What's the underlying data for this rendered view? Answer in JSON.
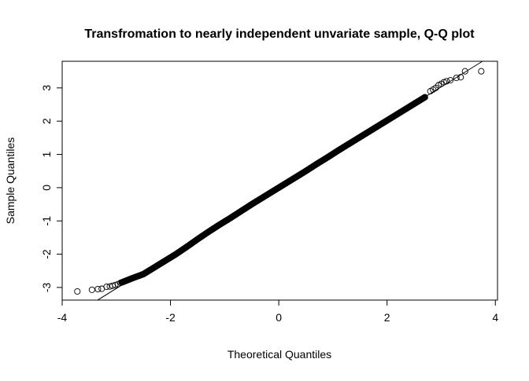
{
  "chart_data": {
    "type": "scatter",
    "title": "Transfromation to nearly independent unvariate sample, Q-Q plot",
    "xlabel": "Theoretical Quantiles",
    "ylabel": "Sample Quantiles",
    "xlim": [
      -4.0,
      4.04
    ],
    "ylim": [
      -3.38,
      3.8
    ],
    "xticks": [
      -4,
      -2,
      0,
      2,
      4
    ],
    "yticks": [
      -3,
      -2,
      -1,
      0,
      1,
      2,
      3
    ],
    "grid": false,
    "marker": "open-circle",
    "reference_line": {
      "slope": 1.01,
      "intercept": 0.0
    },
    "lower_tail_points": [
      [
        -3.72,
        -3.12
      ],
      [
        -3.45,
        -3.07
      ],
      [
        -3.34,
        -3.05
      ],
      [
        -3.27,
        -3.04
      ],
      [
        -3.18,
        -2.98
      ],
      [
        -3.12,
        -2.97
      ],
      [
        -3.07,
        -2.95
      ],
      [
        -3.02,
        -2.93
      ],
      [
        -2.97,
        -2.9
      ],
      [
        -2.92,
        -2.86
      ]
    ],
    "body_quantiles": [
      [
        -2.9,
        -2.85
      ],
      [
        -2.7,
        -2.72
      ],
      [
        -2.5,
        -2.6
      ],
      [
        -2.3,
        -2.4
      ],
      [
        -2.1,
        -2.2
      ],
      [
        -1.9,
        -2.0
      ],
      [
        -1.7,
        -1.78
      ],
      [
        -1.5,
        -1.55
      ],
      [
        -1.3,
        -1.33
      ],
      [
        -1.1,
        -1.12
      ],
      [
        -0.9,
        -0.92
      ],
      [
        -0.7,
        -0.71
      ],
      [
        -0.5,
        -0.5
      ],
      [
        -0.3,
        -0.3
      ],
      [
        -0.1,
        -0.1
      ],
      [
        0.1,
        0.1
      ],
      [
        0.3,
        0.3
      ],
      [
        0.5,
        0.5
      ],
      [
        0.7,
        0.71
      ],
      [
        0.9,
        0.91
      ],
      [
        1.1,
        1.12
      ],
      [
        1.3,
        1.32
      ],
      [
        1.5,
        1.52
      ],
      [
        1.7,
        1.72
      ],
      [
        1.9,
        1.92
      ],
      [
        2.1,
        2.12
      ],
      [
        2.3,
        2.32
      ],
      [
        2.5,
        2.52
      ],
      [
        2.7,
        2.72
      ]
    ],
    "upper_tail_points": [
      [
        2.8,
        2.9
      ],
      [
        2.85,
        2.95
      ],
      [
        2.9,
        3.0
      ],
      [
        2.95,
        3.08
      ],
      [
        3.0,
        3.12
      ],
      [
        3.05,
        3.17
      ],
      [
        3.1,
        3.2
      ],
      [
        3.17,
        3.23
      ],
      [
        3.28,
        3.3
      ],
      [
        3.36,
        3.32
      ],
      [
        3.44,
        3.5
      ],
      [
        3.74,
        3.5
      ]
    ]
  }
}
